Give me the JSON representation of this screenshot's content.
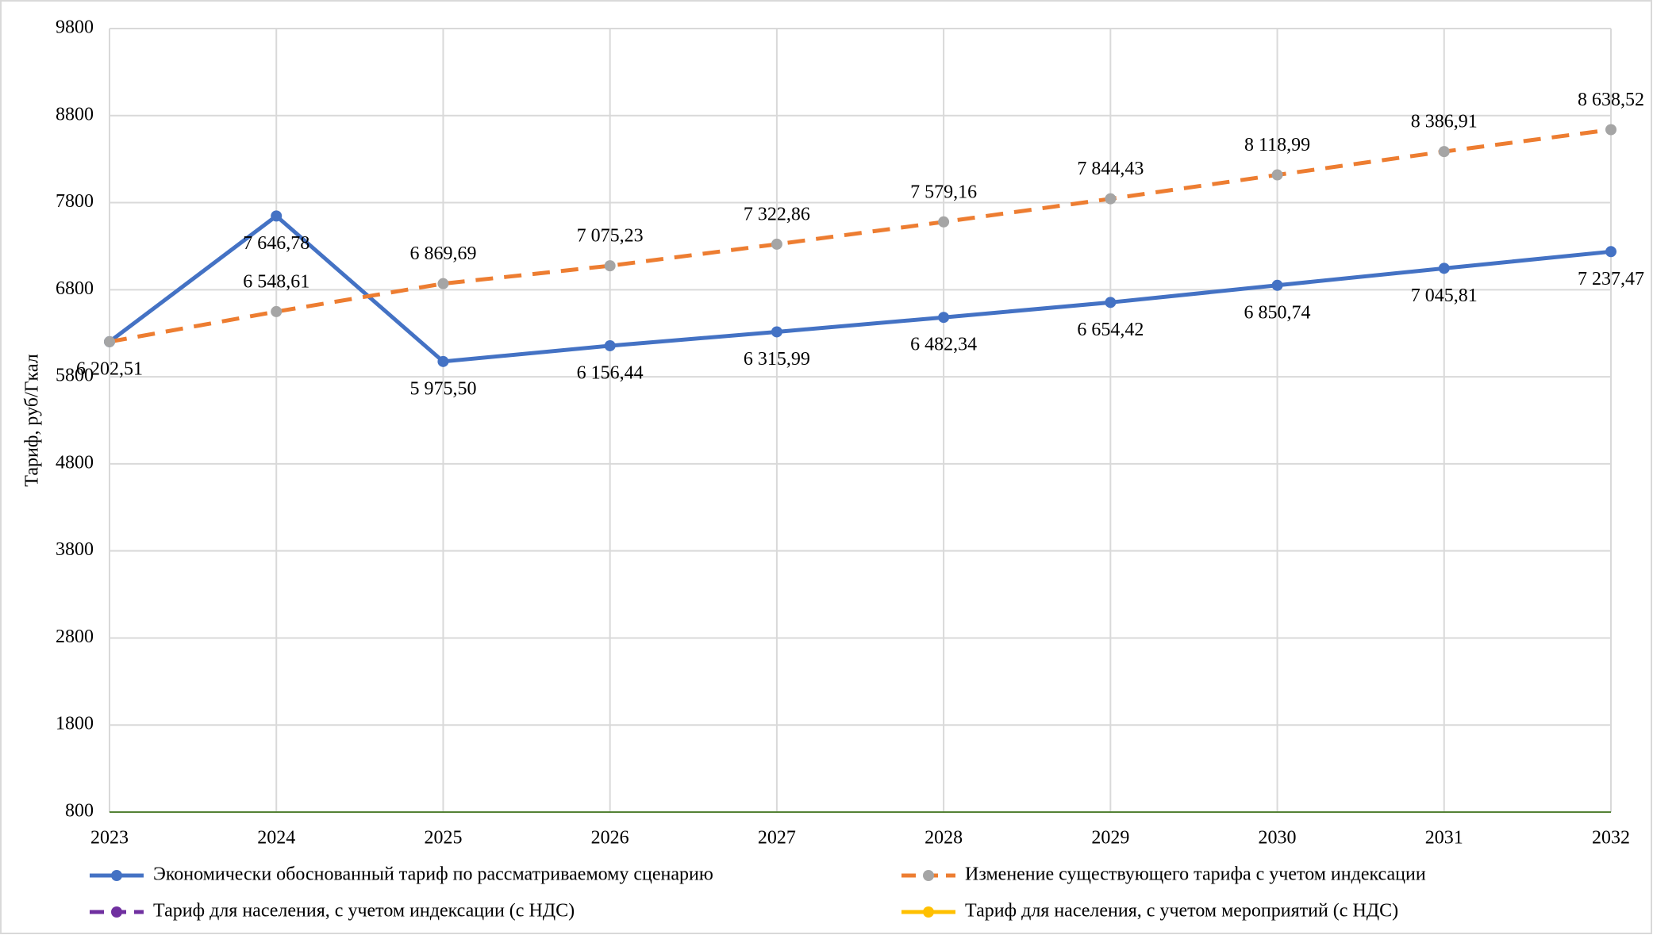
{
  "chart_data": {
    "type": "line",
    "y_label": "Тариф, руб/Гкал",
    "categories": [
      "2023",
      "2024",
      "2025",
      "2026",
      "2027",
      "2028",
      "2029",
      "2030",
      "2031",
      "2032"
    ],
    "ylim": [
      800,
      9800
    ],
    "yticks": [
      800,
      1800,
      2800,
      3800,
      4800,
      5800,
      6800,
      7800,
      8800,
      9800
    ],
    "grid": true,
    "legend": "bottom",
    "series": [
      {
        "name": "Экономически обоснованный тариф по рассматриваемому  сценарию",
        "color": "#4472c4",
        "marker_color": "#4472c4",
        "dash": false,
        "label_position": "below",
        "values": [
          6202.51,
          7646.78,
          5975.5,
          6156.44,
          6315.99,
          6482.34,
          6654.42,
          6850.74,
          7045.81,
          7237.47
        ],
        "value_labels": [
          "6 202,51",
          "7 646,78",
          "5 975,50",
          "6 156,44",
          "6 315,99",
          "6 482,34",
          "6 654,42",
          "6 850,74",
          "7 045,81",
          "7 237,47"
        ]
      },
      {
        "name": "Изменение существующего тарифа с учетом индексации",
        "color": "#ed7d31",
        "marker_color": "#a5a5a5",
        "dash": true,
        "label_position": "above",
        "values": [
          6202.51,
          6548.61,
          6869.69,
          7075.23,
          7322.86,
          7579.16,
          7844.43,
          8118.99,
          8386.91,
          8638.52
        ],
        "value_labels": [
          null,
          "6 548,61",
          "6 869,69",
          "7 075,23",
          "7 322,86",
          "7 579,16",
          "7 844,43",
          "8 118,99",
          "8 386,91",
          "8 638,52"
        ]
      },
      {
        "name": "Тариф для населения, с учетом индексации (с НДС)",
        "color": "#7030a0",
        "marker_color": "#7030a0",
        "dash": true,
        "label_position": "above",
        "values": [
          null,
          null,
          null,
          null,
          null,
          null,
          null,
          null,
          null,
          null
        ]
      },
      {
        "name": "Тариф для населения, с учетом мероприятий (с НДС)",
        "color": "#ffc000",
        "marker_color": "#ffc000",
        "dash": false,
        "label_position": "above",
        "values": [
          null,
          null,
          null,
          null,
          null,
          null,
          null,
          null,
          null,
          null
        ]
      }
    ]
  }
}
